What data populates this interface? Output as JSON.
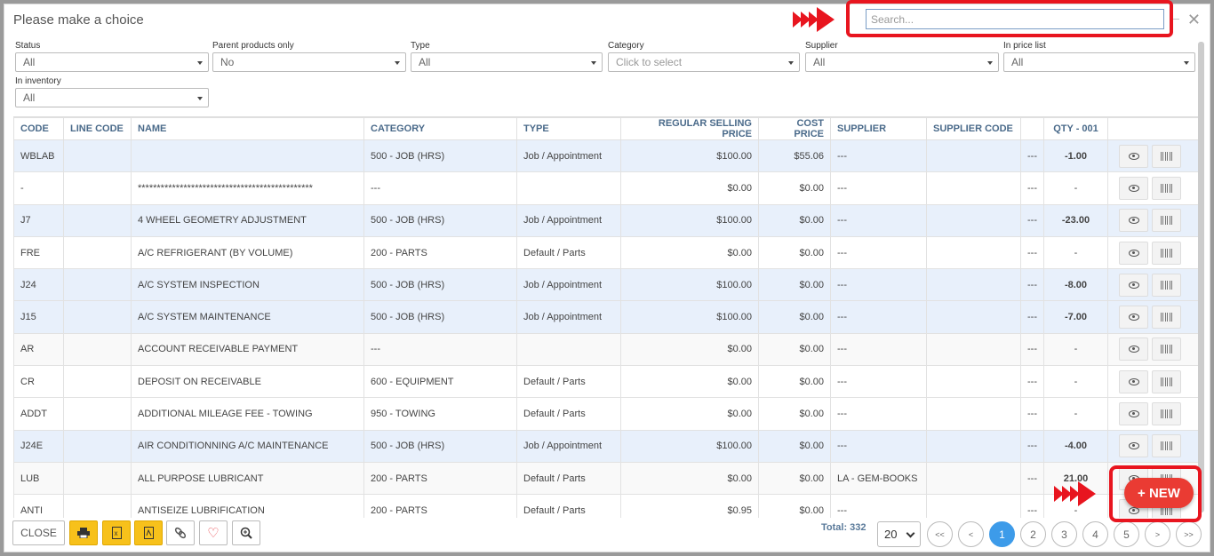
{
  "dialog": {
    "title": "Please make a choice"
  },
  "search": {
    "placeholder": "Search..."
  },
  "filters": [
    {
      "label": "Status",
      "value": "All"
    },
    {
      "label": "Parent products only",
      "value": "No"
    },
    {
      "label": "Type",
      "value": "All"
    },
    {
      "label": "Category",
      "value": "Click to select"
    },
    {
      "label": "Supplier",
      "value": "All"
    },
    {
      "label": "In price list",
      "value": "All"
    },
    {
      "label": "In inventory",
      "value": "All"
    }
  ],
  "table": {
    "headers": [
      "CODE",
      "LINE CODE",
      "NAME",
      "CATEGORY",
      "TYPE",
      "REGULAR SELLING PRICE",
      "COST PRICE",
      "SUPPLIER",
      "SUPPLIER CODE",
      "",
      "QTY - 001",
      ""
    ],
    "rows": [
      [
        "WBLAB",
        "",
        "",
        "500 - JOB (HRS)",
        "Job / Appointment",
        "$100.00",
        "$55.06",
        "---",
        "",
        "---",
        "-1.00"
      ],
      [
        "-",
        "",
        "**********************************************",
        "---",
        "",
        "$0.00",
        "$0.00",
        "---",
        "",
        "---",
        "-"
      ],
      [
        "J7",
        "",
        "4 WHEEL GEOMETRY ADJUSTMENT",
        "500 - JOB (HRS)",
        "Job / Appointment",
        "$100.00",
        "$0.00",
        "---",
        "",
        "---",
        "-23.00"
      ],
      [
        "FRE",
        "",
        "A/C REFRIGERANT (BY VOLUME)",
        "200 - PARTS",
        "Default / Parts",
        "$0.00",
        "$0.00",
        "---",
        "",
        "---",
        "-"
      ],
      [
        "J24",
        "",
        "A/C SYSTEM INSPECTION",
        "500 - JOB (HRS)",
        "Job / Appointment",
        "$100.00",
        "$0.00",
        "---",
        "",
        "---",
        "-8.00"
      ],
      [
        "J15",
        "",
        "A/C SYSTEM MAINTENANCE",
        "500 - JOB (HRS)",
        "Job / Appointment",
        "$100.00",
        "$0.00",
        "---",
        "",
        "---",
        "-7.00"
      ],
      [
        "AR",
        "",
        "ACCOUNT RECEIVABLE PAYMENT",
        "---",
        "",
        "$0.00",
        "$0.00",
        "---",
        "",
        "---",
        "-"
      ],
      [
        "CR",
        "",
        "DEPOSIT ON RECEIVABLE",
        "600 - EQUIPMENT",
        "Default / Parts",
        "$0.00",
        "$0.00",
        "---",
        "",
        "---",
        "-"
      ],
      [
        "ADDT",
        "",
        "ADDITIONAL MILEAGE FEE - TOWING",
        "950 - TOWING",
        "Default / Parts",
        "$0.00",
        "$0.00",
        "---",
        "",
        "---",
        "-"
      ],
      [
        "J24E",
        "",
        "AIR CONDITIONNING A/C MAINTENANCE",
        "500 - JOB (HRS)",
        "Job / Appointment",
        "$100.00",
        "$0.00",
        "---",
        "",
        "---",
        "-4.00"
      ],
      [
        "LUB",
        "",
        "ALL PURPOSE LUBRICANT",
        "200 - PARTS",
        "Default / Parts",
        "$0.00",
        "$0.00",
        "LA - GEM-BOOKS",
        "",
        "---",
        "21.00"
      ],
      [
        "ANTI",
        "",
        "ANTISEIZE LUBRIFICATION",
        "200 - PARTS",
        "Default / Parts",
        "$0.95",
        "$0.00",
        "---",
        "",
        "---",
        "-"
      ]
    ]
  },
  "footer": {
    "close_label": "CLOSE",
    "total_label": "Total: 332",
    "page_size": "20",
    "pages": [
      "<<",
      "<",
      "1",
      "2",
      "3",
      "4",
      "5",
      ">",
      ">>"
    ],
    "active_page": "1",
    "new_label": "+ NEW"
  }
}
